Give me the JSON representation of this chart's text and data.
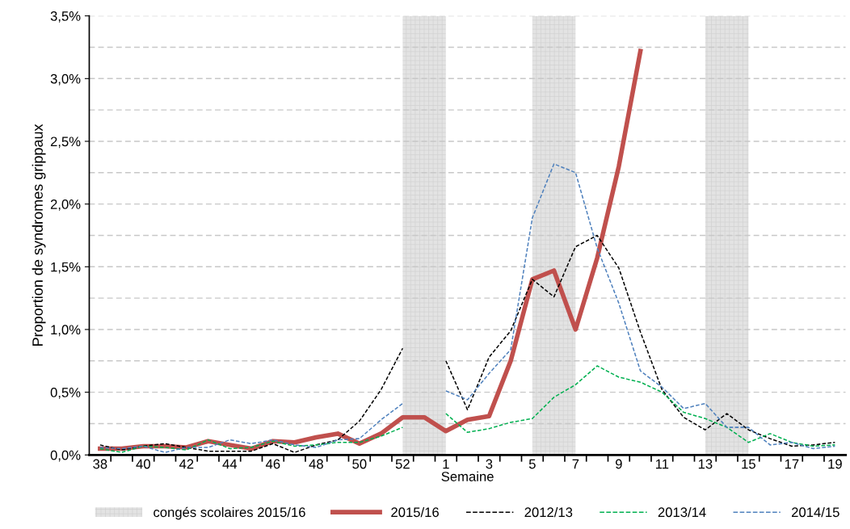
{
  "chart_data": {
    "type": "line",
    "xlabel": "Semaine",
    "ylabel": "Proportion de syndromes grippaux",
    "categories": [
      "38",
      null,
      "40",
      null,
      "42",
      null,
      "44",
      null,
      "46",
      null,
      "48",
      null,
      "50",
      null,
      "52",
      null,
      "1",
      null,
      "3",
      null,
      "5",
      null,
      "7",
      null,
      "9",
      null,
      "11",
      null,
      "13",
      null,
      "15",
      null,
      "17",
      null,
      "19"
    ],
    "series": [
      {
        "name": "2015/16",
        "color": "#c0504d",
        "line_style": "solid",
        "values": [
          0.05,
          0.05,
          0.07,
          0.07,
          0.06,
          0.11,
          0.08,
          0.05,
          0.11,
          0.1,
          0.14,
          0.17,
          0.09,
          0.17,
          0.3,
          0.3,
          0.19,
          0.28,
          0.31,
          0.75,
          1.4,
          1.47,
          1.0,
          1.57,
          2.3,
          3.22,
          null,
          null,
          null,
          null,
          null,
          null,
          null,
          null,
          null
        ]
      },
      {
        "name": "2012/13",
        "color": "#000000",
        "line_style": "dashed",
        "values": [
          0.08,
          0.04,
          0.07,
          0.09,
          0.06,
          0.03,
          0.03,
          0.03,
          0.09,
          0.02,
          0.08,
          0.12,
          0.27,
          0.52,
          0.85,
          null,
          0.75,
          0.36,
          0.78,
          0.99,
          1.4,
          1.26,
          1.66,
          1.75,
          1.49,
          0.98,
          0.52,
          0.3,
          0.2,
          0.33,
          0.2,
          0.13,
          0.07,
          0.08,
          0.1
        ]
      },
      {
        "name": "2013/14",
        "color": "#00b050",
        "line_style": "dashed",
        "values": [
          0.05,
          0.02,
          0.07,
          0.06,
          0.04,
          0.12,
          0.05,
          0.06,
          0.11,
          0.07,
          0.08,
          0.1,
          0.1,
          0.15,
          0.22,
          null,
          0.33,
          0.18,
          0.21,
          0.26,
          0.29,
          0.46,
          0.56,
          0.71,
          0.62,
          0.58,
          0.5,
          0.34,
          0.29,
          0.22,
          0.1,
          0.17,
          0.1,
          0.07,
          0.08
        ]
      },
      {
        "name": "2014/15",
        "color": "#4f81bd",
        "line_style": "dashed",
        "values": [
          0.06,
          0.05,
          0.07,
          0.02,
          0.06,
          0.06,
          0.12,
          0.09,
          0.12,
          0.08,
          0.06,
          0.12,
          0.13,
          0.28,
          0.41,
          null,
          0.51,
          0.44,
          0.65,
          0.84,
          1.89,
          2.32,
          2.25,
          1.65,
          1.21,
          0.67,
          0.54,
          0.37,
          0.41,
          0.22,
          0.22,
          0.08,
          0.1,
          0.05,
          0.07
        ]
      }
    ],
    "bands": [
      {
        "axis": "x",
        "from": "52",
        "to": "1",
        "label": "congés scolaires 2015/16",
        "color": "#e3e3e3"
      },
      {
        "axis": "x",
        "from": "5",
        "to": "7",
        "color": "#e3e3e3"
      },
      {
        "axis": "x",
        "from": "13",
        "to": "15",
        "color": "#e3e3e3"
      }
    ],
    "ylim": [
      0,
      3.5
    ],
    "yticks": [
      {
        "value": 0,
        "label": "0,0%"
      },
      {
        "value": 0.25,
        "label": null
      },
      {
        "value": 0.5,
        "label": "0,5%"
      },
      {
        "value": 0.75,
        "label": null
      },
      {
        "value": 1.0,
        "label": "1,0%"
      },
      {
        "value": 1.25,
        "label": null
      },
      {
        "value": 1.5,
        "label": "1,5%"
      },
      {
        "value": 1.75,
        "label": null
      },
      {
        "value": 2.0,
        "label": "2,0%"
      },
      {
        "value": 2.25,
        "label": null
      },
      {
        "value": 2.5,
        "label": "2,5%"
      },
      {
        "value": 2.75,
        "label": null
      },
      {
        "value": 3.0,
        "label": "3,0%"
      },
      {
        "value": 3.25,
        "label": null
      },
      {
        "value": 3.5,
        "label": "3,5%"
      }
    ],
    "grid": "y",
    "legend": "bottom",
    "marker": "none"
  }
}
